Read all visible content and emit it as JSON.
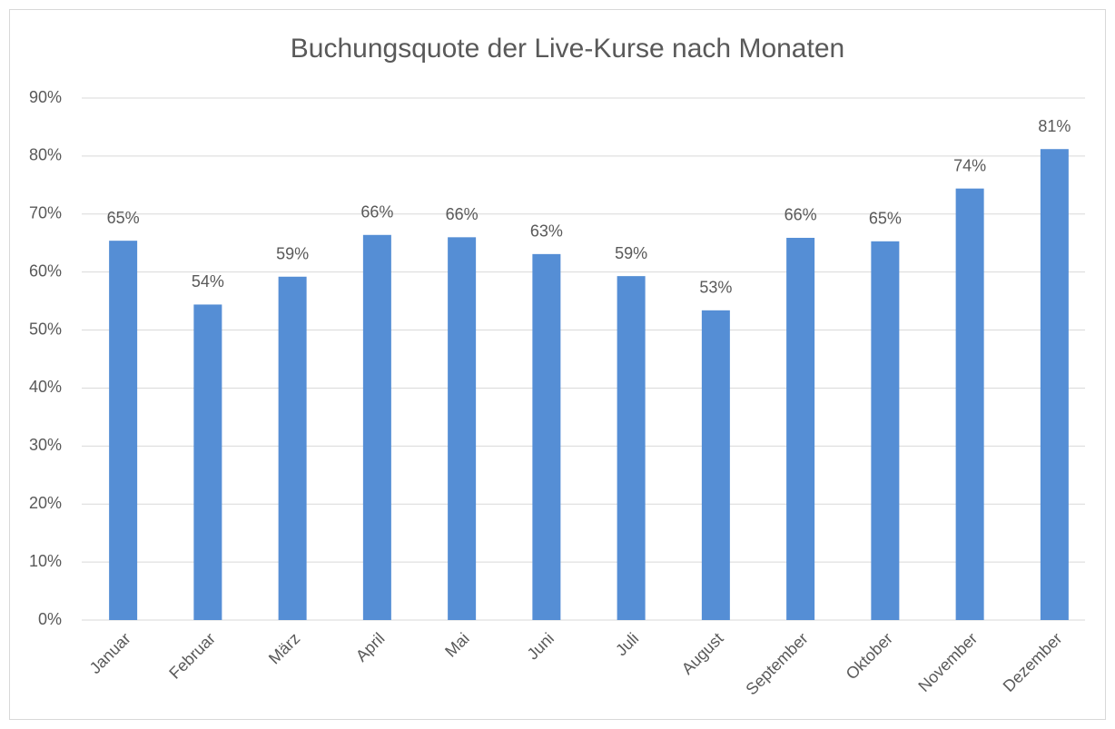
{
  "chart_data": {
    "type": "bar",
    "title": "Buchungsquote der Live-Kurse nach Monaten",
    "categories": [
      "Januar",
      "Februar",
      "März",
      "April",
      "Mai",
      "Juni",
      "Juli",
      "August",
      "September",
      "Oktober",
      "November",
      "Dezember"
    ],
    "values": [
      65.4,
      54.4,
      59.2,
      66.4,
      66.0,
      63.1,
      59.3,
      53.4,
      65.9,
      65.3,
      74.4,
      81.2
    ],
    "value_labels": [
      "65%",
      "54%",
      "59%",
      "66%",
      "66%",
      "63%",
      "59%",
      "53%",
      "66%",
      "65%",
      "74%",
      "81%"
    ],
    "color": "#558ed5",
    "ylim": [
      0,
      90
    ],
    "yticks": [
      {
        "value": 0,
        "label": "0%"
      },
      {
        "value": 10,
        "label": "10%"
      },
      {
        "value": 20,
        "label": "20%"
      },
      {
        "value": 30,
        "label": "30%"
      },
      {
        "value": 40,
        "label": "40%"
      },
      {
        "value": 50,
        "label": "50%"
      },
      {
        "value": 60,
        "label": "60%"
      },
      {
        "value": 70,
        "label": "70%"
      },
      {
        "value": 80,
        "label": "80%"
      },
      {
        "value": 90,
        "label": "90%"
      }
    ],
    "grid": true
  }
}
